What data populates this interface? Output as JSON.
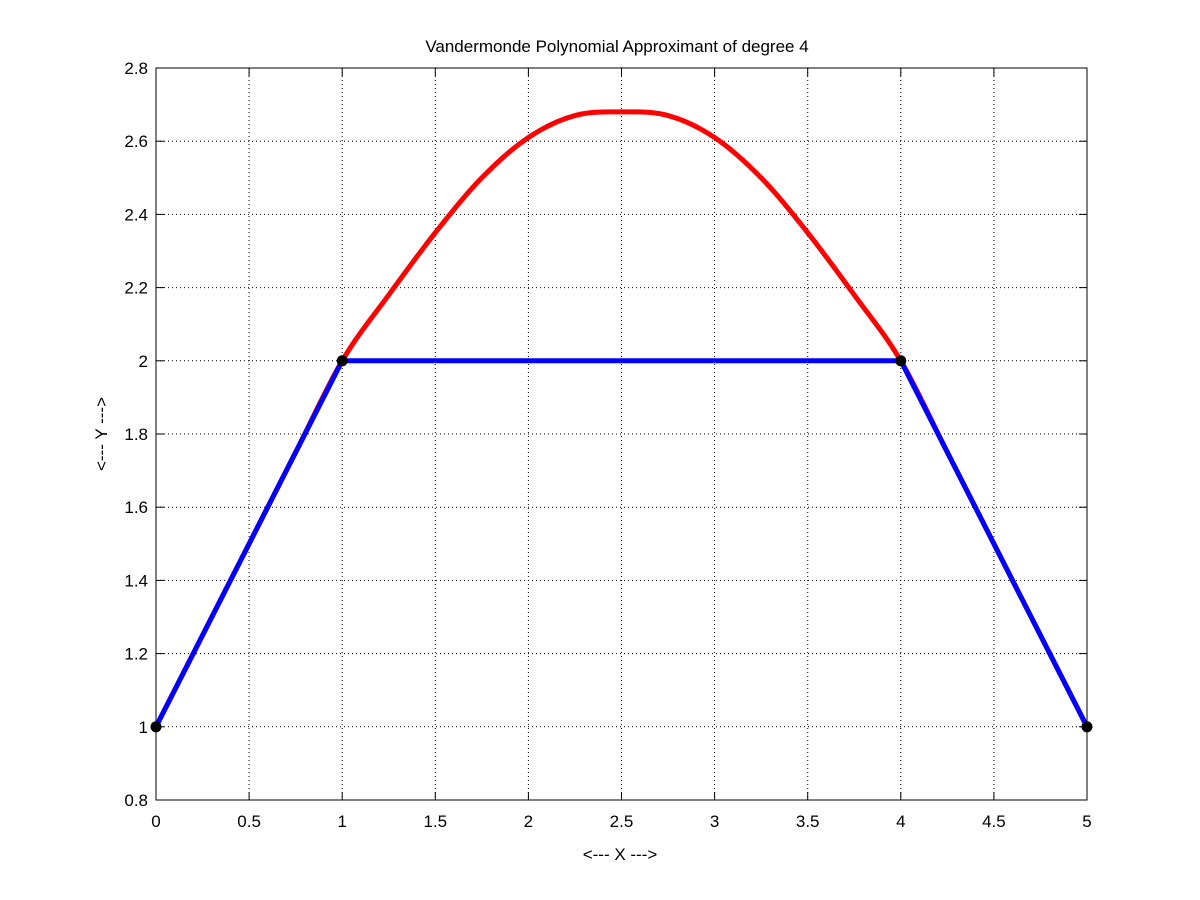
{
  "chart_data": {
    "type": "line",
    "title": "Vandermonde Polynomial Approximant of degree 4",
    "xlabel": "<--- X --->",
    "ylabel": "<--- Y --->",
    "xlim": [
      0,
      5
    ],
    "ylim": [
      0.8,
      2.8
    ],
    "x_ticks": [
      0,
      0.5,
      1,
      1.5,
      2,
      2.5,
      3,
      3.5,
      4,
      4.5,
      5
    ],
    "x_tick_labels": [
      "0",
      "0.5",
      "1",
      "1.5",
      "2",
      "2.5",
      "3",
      "3.5",
      "4",
      "4.5",
      "5"
    ],
    "y_ticks": [
      0.8,
      1,
      1.2,
      1.4,
      1.6,
      1.8,
      2,
      2.2,
      2.4,
      2.6,
      2.8
    ],
    "y_tick_labels": [
      "0.8",
      "1",
      "1.2",
      "1.4",
      "1.6",
      "1.8",
      "2",
      "2.2",
      "2.4",
      "2.6",
      "2.8"
    ],
    "grid": true,
    "box": true,
    "series": [
      {
        "style": "line",
        "color": "#ff0000",
        "x": [
          0,
          0.25,
          0.5,
          0.75,
          1,
          1.25,
          1.5,
          1.75,
          2,
          2.25,
          2.5,
          2.75,
          3,
          3.25,
          3.5,
          3.75,
          4,
          4.25,
          4.5,
          4.75,
          5
        ],
        "y": [
          1,
          1.25,
          1.5,
          1.75,
          2,
          2.18,
          2.35,
          2.5,
          2.61,
          2.67,
          2.68,
          2.67,
          2.61,
          2.5,
          2.35,
          2.18,
          2,
          1.75,
          1.5,
          1.25,
          1
        ]
      },
      {
        "style": "line",
        "color": "#0000ff",
        "x": [
          0,
          1,
          4,
          5
        ],
        "y": [
          1,
          2,
          2,
          1
        ]
      },
      {
        "style": "markers",
        "color": "#000000",
        "x": [
          0,
          1,
          4,
          5
        ],
        "y": [
          1,
          2,
          2,
          1
        ]
      }
    ]
  }
}
